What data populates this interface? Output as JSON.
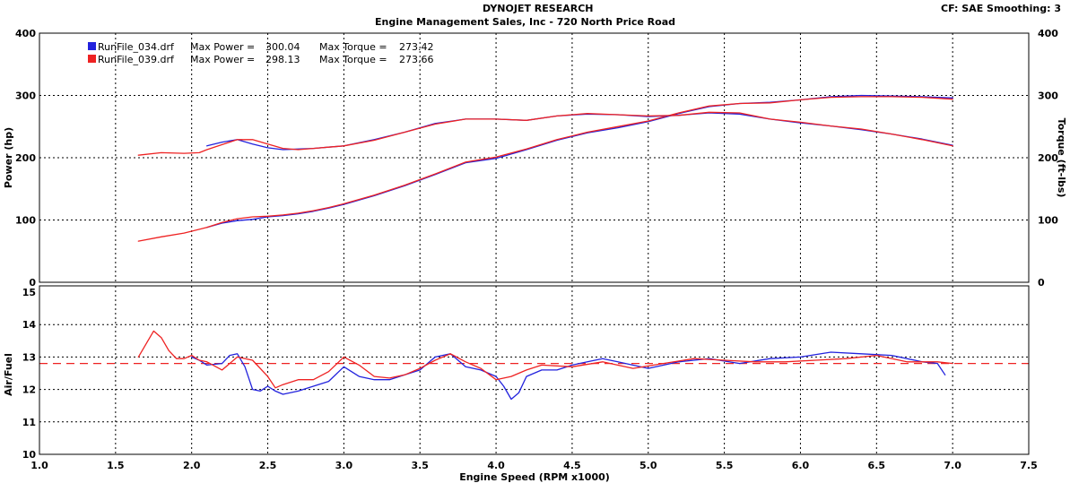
{
  "header": {
    "title": "DYNOJET RESEARCH",
    "subtitle": "Engine Management Sales, Inc - 720 North Price Road",
    "correction": "CF: SAE  Smoothing: 3"
  },
  "colors": {
    "run_034": "#2222dd",
    "run_039": "#ee2222",
    "grid": "#000000",
    "target_afr": "#ee2222"
  },
  "chart_data": [
    {
      "type": "line",
      "title": "",
      "xlabel": "",
      "ylabel": "Power (hp)",
      "y2label": "Torque (ft-lbs)",
      "xlim": [
        1.0,
        7.5
      ],
      "ylim": [
        0,
        400
      ],
      "y2lim": [
        0,
        400
      ],
      "xticks": [
        1.0,
        1.5,
        2.0,
        2.5,
        3.0,
        3.5,
        4.0,
        4.5,
        5.0,
        5.5,
        6.0,
        6.5,
        7.0,
        7.5
      ],
      "yticks": [
        0,
        100,
        200,
        300,
        400
      ],
      "grid": true,
      "legend_position": "top-left",
      "legend": [
        {
          "color_key": "run_034",
          "file": "RunFile_034.drf",
          "power_label": "Max Power =",
          "power": "300.04",
          "torque_label": "Max Torque =",
          "torque": "273.42"
        },
        {
          "color_key": "run_039",
          "file": "RunFile_039.drf",
          "power_label": "Max Power =",
          "power": "298.13",
          "torque_label": "Max Torque =",
          "torque": "273.66"
        }
      ],
      "series": [
        {
          "name": "RunFile_034.drf",
          "measure": "power",
          "color_key": "run_034",
          "x": [
            2.1,
            2.2,
            2.3,
            2.4,
            2.5,
            2.6,
            2.7,
            2.8,
            2.9,
            3.0,
            3.2,
            3.4,
            3.6,
            3.8,
            4.0,
            4.2,
            4.4,
            4.6,
            4.8,
            5.0,
            5.2,
            5.4,
            5.6,
            5.8,
            6.0,
            6.2,
            6.4,
            6.6,
            6.8,
            7.0
          ],
          "y": [
            88,
            95,
            99,
            101,
            105,
            107,
            110,
            114,
            119,
            125,
            139,
            155,
            173,
            192,
            199,
            213,
            228,
            240,
            248,
            258,
            271,
            282,
            287,
            289,
            293,
            298,
            300,
            299,
            298,
            296
          ]
        },
        {
          "name": "RunFile_039.drf",
          "measure": "power",
          "color_key": "run_039",
          "x": [
            1.65,
            1.8,
            1.95,
            2.1,
            2.2,
            2.3,
            2.4,
            2.5,
            2.6,
            2.7,
            2.8,
            2.9,
            3.0,
            3.2,
            3.4,
            3.6,
            3.8,
            4.0,
            4.2,
            4.4,
            4.6,
            4.8,
            5.0,
            5.2,
            5.4,
            5.6,
            5.8,
            6.0,
            6.2,
            6.4,
            6.6,
            6.8,
            7.0
          ],
          "y": [
            66,
            73,
            79,
            88,
            96,
            102,
            105,
            106,
            108,
            111,
            115,
            120,
            126,
            140,
            156,
            174,
            193,
            201,
            214,
            229,
            241,
            250,
            259,
            272,
            283,
            287,
            288,
            293,
            297,
            298,
            298,
            297,
            294
          ]
        },
        {
          "name": "RunFile_034.drf",
          "measure": "torque",
          "color_key": "run_034",
          "x": [
            2.1,
            2.2,
            2.3,
            2.4,
            2.5,
            2.6,
            2.7,
            2.8,
            2.9,
            3.0,
            3.2,
            3.4,
            3.6,
            3.8,
            4.0,
            4.2,
            4.4,
            4.6,
            4.8,
            5.0,
            5.2,
            5.4,
            5.6,
            5.8,
            6.0,
            6.2,
            6.4,
            6.6,
            6.8,
            7.0
          ],
          "y": [
            219,
            225,
            229,
            222,
            216,
            213,
            214,
            215,
            217,
            219,
            229,
            241,
            255,
            262,
            262,
            260,
            267,
            270,
            269,
            266,
            268,
            272,
            270,
            262,
            256,
            251,
            245,
            238,
            230,
            220
          ]
        },
        {
          "name": "RunFile_039.drf",
          "measure": "torque",
          "color_key": "run_039",
          "x": [
            1.65,
            1.8,
            1.95,
            2.05,
            2.1,
            2.2,
            2.3,
            2.4,
            2.5,
            2.6,
            2.7,
            2.8,
            2.9,
            3.0,
            3.2,
            3.4,
            3.6,
            3.8,
            4.0,
            4.2,
            4.4,
            4.6,
            4.8,
            5.0,
            5.2,
            5.4,
            5.6,
            5.8,
            6.0,
            6.2,
            6.4,
            6.6,
            6.8,
            7.0
          ],
          "y": [
            204,
            208,
            207,
            208,
            213,
            221,
            229,
            229,
            222,
            215,
            213,
            215,
            217,
            219,
            228,
            241,
            254,
            262,
            262,
            260,
            267,
            271,
            269,
            267,
            268,
            273,
            272,
            262,
            257,
            251,
            246,
            238,
            229,
            219
          ]
        }
      ]
    },
    {
      "type": "line",
      "title": "",
      "xlabel": "Engine Speed (RPM x1000)",
      "ylabel": "Air/Fuel",
      "xlim": [
        1.0,
        7.5
      ],
      "ylim": [
        10,
        15
      ],
      "xticks": [
        1.0,
        1.5,
        2.0,
        2.5,
        3.0,
        3.5,
        4.0,
        4.5,
        5.0,
        5.5,
        6.0,
        6.5,
        7.0,
        7.5
      ],
      "yticks": [
        10,
        11,
        12,
        13,
        14,
        15
      ],
      "grid": true,
      "target_afr": 12.8,
      "series": [
        {
          "name": "RunFile_034.drf",
          "measure": "air_fuel",
          "color_key": "run_034",
          "x": [
            2.0,
            2.05,
            2.1,
            2.2,
            2.25,
            2.3,
            2.35,
            2.4,
            2.45,
            2.5,
            2.55,
            2.6,
            2.7,
            2.8,
            2.9,
            3.0,
            3.1,
            3.2,
            3.3,
            3.4,
            3.5,
            3.6,
            3.7,
            3.75,
            3.8,
            3.9,
            4.0,
            4.05,
            4.1,
            4.15,
            4.2,
            4.3,
            4.4,
            4.5,
            4.6,
            4.7,
            4.8,
            5.0,
            5.2,
            5.4,
            5.6,
            5.8,
            6.0,
            6.2,
            6.4,
            6.6,
            6.8,
            6.9,
            6.95
          ],
          "y": [
            13.0,
            12.9,
            12.75,
            12.8,
            13.05,
            13.1,
            12.7,
            12.0,
            11.95,
            12.1,
            11.95,
            11.85,
            11.95,
            12.1,
            12.25,
            12.7,
            12.4,
            12.3,
            12.3,
            12.45,
            12.6,
            13.0,
            13.1,
            12.9,
            12.7,
            12.6,
            12.4,
            12.1,
            11.7,
            11.9,
            12.4,
            12.6,
            12.6,
            12.75,
            12.85,
            12.95,
            12.85,
            12.65,
            12.85,
            12.95,
            12.8,
            12.95,
            13.0,
            13.15,
            13.1,
            13.05,
            12.85,
            12.8,
            12.45
          ]
        },
        {
          "name": "RunFile_039.drf",
          "measure": "air_fuel",
          "color_key": "run_039",
          "x": [
            1.65,
            1.7,
            1.75,
            1.8,
            1.85,
            1.9,
            1.95,
            2.0,
            2.05,
            2.1,
            2.2,
            2.3,
            2.4,
            2.5,
            2.55,
            2.6,
            2.7,
            2.8,
            2.9,
            3.0,
            3.1,
            3.2,
            3.3,
            3.4,
            3.5,
            3.6,
            3.7,
            3.8,
            3.9,
            4.0,
            4.1,
            4.2,
            4.3,
            4.5,
            4.7,
            4.9,
            5.1,
            5.3,
            5.5,
            5.7,
            5.9,
            6.1,
            6.3,
            6.5,
            6.7,
            6.9,
            7.0
          ],
          "y": [
            13.0,
            13.4,
            13.8,
            13.6,
            13.2,
            12.95,
            12.95,
            13.05,
            12.9,
            12.85,
            12.6,
            13.0,
            12.9,
            12.4,
            12.05,
            12.15,
            12.3,
            12.3,
            12.55,
            13.0,
            12.75,
            12.4,
            12.35,
            12.45,
            12.65,
            12.9,
            13.1,
            12.85,
            12.65,
            12.3,
            12.4,
            12.6,
            12.75,
            12.7,
            12.85,
            12.65,
            12.8,
            12.95,
            12.9,
            12.85,
            12.85,
            12.9,
            12.95,
            13.05,
            12.85,
            12.85,
            12.8
          ]
        }
      ]
    }
  ]
}
